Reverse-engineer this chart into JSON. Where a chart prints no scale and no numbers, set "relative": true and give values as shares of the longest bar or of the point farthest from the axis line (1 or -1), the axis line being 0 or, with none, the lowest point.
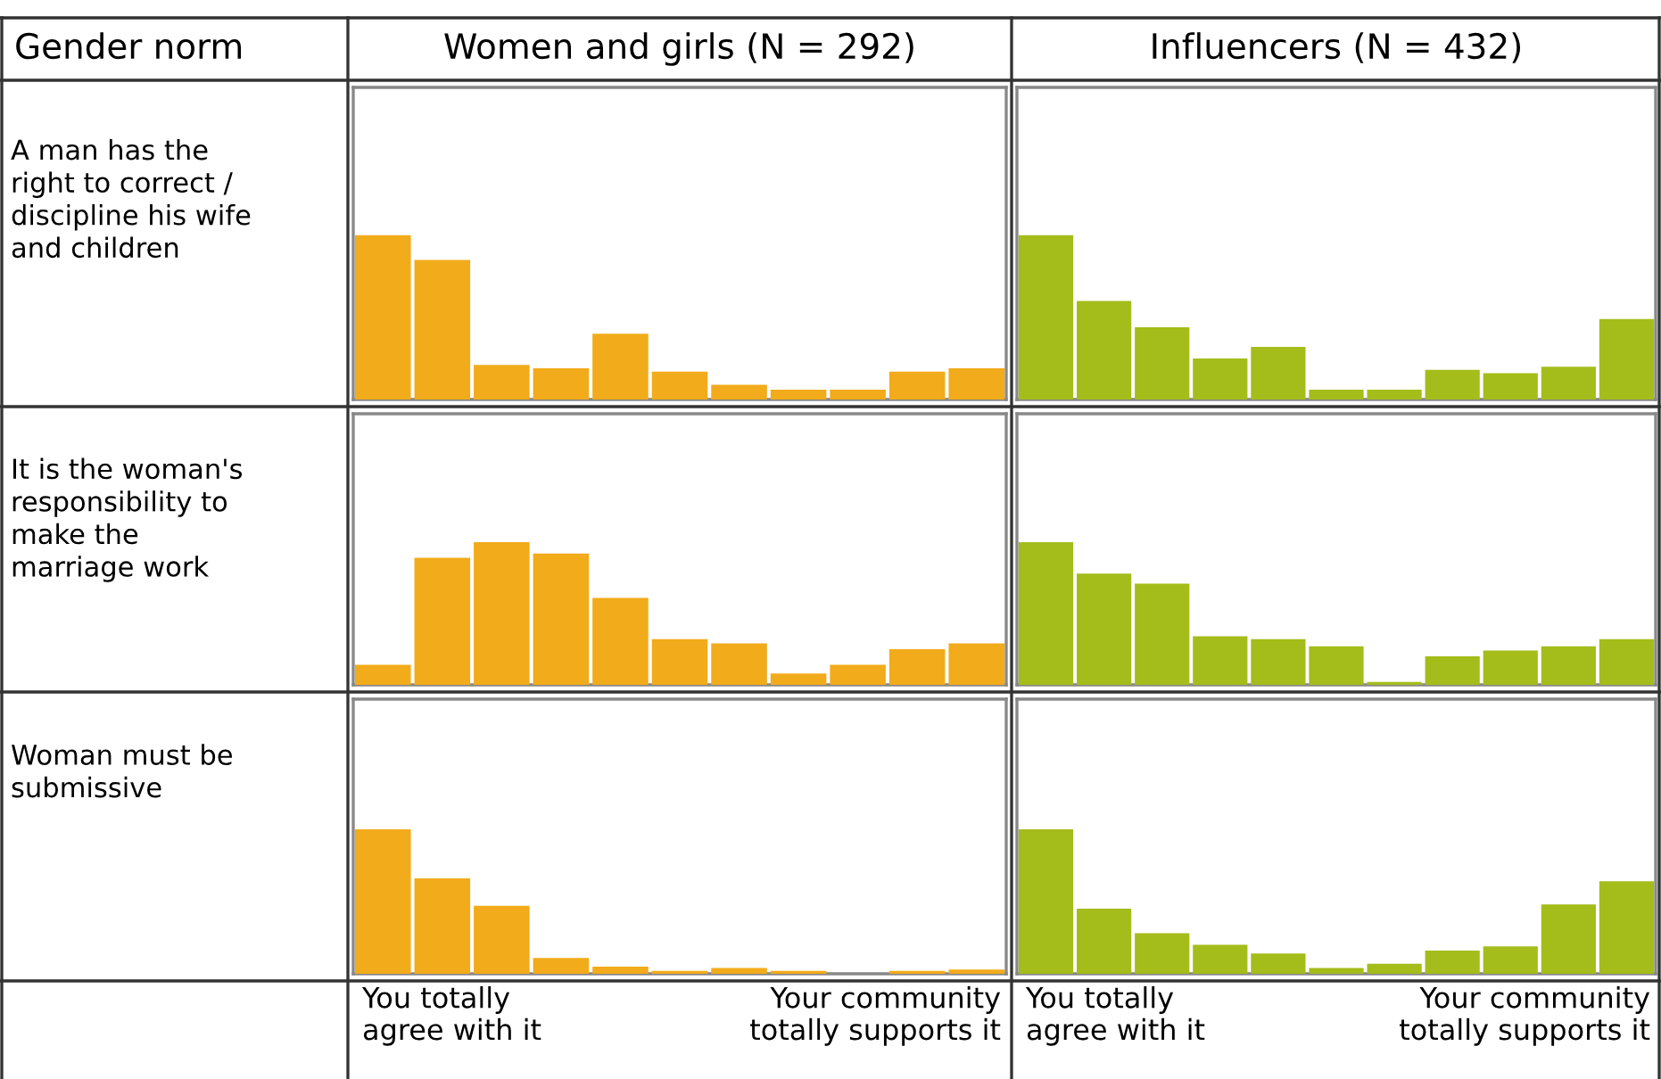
{
  "chart_data": [
    {
      "type": "bar",
      "relative": true,
      "title": "Women and girls (N = 292)",
      "ylabel": "A man has the right to correct / discipline his wife and children",
      "annotations": [
        "Gender norm"
      ],
      "tick_labels": false,
      "categories": [
        null,
        null,
        null,
        null,
        null,
        null,
        null,
        null,
        null,
        null,
        null
      ],
      "color": "#f2ab1b",
      "values": [
        1,
        0.85,
        0.21,
        0.19,
        0.4,
        0.17,
        0.09,
        0.06,
        0.06,
        0.17,
        0.19
      ]
    },
    {
      "type": "bar",
      "relative": true,
      "title": "Influencers (N = 432)",
      "tick_labels": false,
      "categories": [
        null,
        null,
        null,
        null,
        null,
        null,
        null,
        null,
        null,
        null,
        null
      ],
      "color": "#a4bd1a",
      "values": [
        1,
        0.6,
        0.44,
        0.25,
        0.32,
        0.06,
        0.06,
        0.18,
        0.16,
        0.2,
        0.49
      ]
    },
    {
      "type": "bar",
      "relative": true,
      "ylabel": "It is the woman's responsibility to make the marriage work",
      "tick_labels": false,
      "categories": [
        null,
        null,
        null,
        null,
        null,
        null,
        null,
        null,
        null,
        null,
        null
      ],
      "color": "#f2ab1b",
      "values": [
        0.14,
        0.89,
        1,
        0.92,
        0.61,
        0.32,
        0.29,
        0.08,
        0.14,
        0.25,
        0.29
      ]
    },
    {
      "type": "bar",
      "relative": true,
      "tick_labels": false,
      "categories": [
        null,
        null,
        null,
        null,
        null,
        null,
        null,
        null,
        null,
        null,
        null
      ],
      "color": "#a4bd1a",
      "values": [
        1,
        0.78,
        0.71,
        0.34,
        0.32,
        0.27,
        0.02,
        0.2,
        0.24,
        0.27,
        0.32
      ]
    },
    {
      "type": "bar",
      "relative": true,
      "ylabel": "Woman must be submissive",
      "annotations": [
        "You totally agree with it",
        "Your community totally supports it"
      ],
      "tick_labels": false,
      "categories": [
        null,
        null,
        null,
        null,
        null,
        null,
        null,
        null,
        null,
        null,
        null
      ],
      "color": "#f2ab1b",
      "values": [
        1,
        0.66,
        0.47,
        0.11,
        0.05,
        0.02,
        0.04,
        0.02,
        0,
        0.02,
        0.03
      ]
    },
    {
      "type": "bar",
      "relative": true,
      "annotations": [
        "You totally agree with it",
        "Your community totally supports it"
      ],
      "tick_labels": false,
      "categories": [
        null,
        null,
        null,
        null,
        null,
        null,
        null,
        null,
        null,
        null,
        null
      ],
      "color": "#a4bd1a",
      "values": [
        1,
        0.45,
        0.28,
        0.2,
        0.14,
        0.04,
        0.07,
        0.16,
        0.19,
        0.48,
        0.64
      ]
    }
  ]
}
